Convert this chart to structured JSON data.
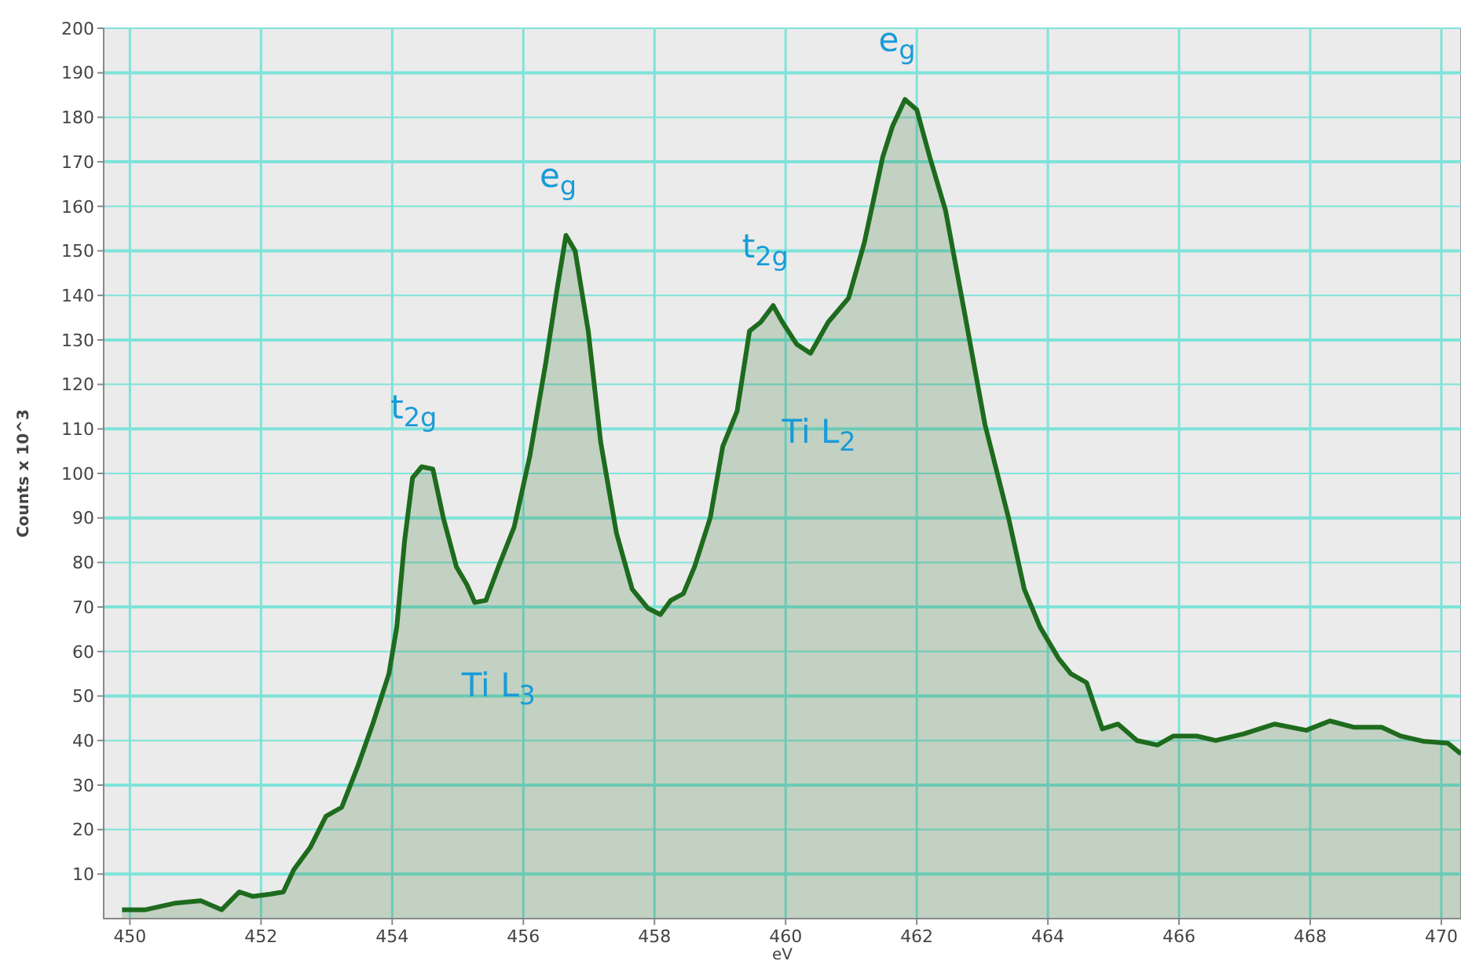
{
  "chart_data": {
    "type": "area",
    "xlabel": "eV",
    "ylabel": "Counts x 10^3",
    "xlim": [
      449.6,
      470.3
    ],
    "ylim": [
      0,
      200
    ],
    "xticks": [
      450,
      452,
      454,
      456,
      458,
      460,
      462,
      464,
      466,
      468,
      470
    ],
    "yticks": [
      10,
      20,
      30,
      40,
      50,
      60,
      70,
      80,
      90,
      100,
      110,
      120,
      130,
      140,
      150,
      160,
      170,
      180,
      190,
      200
    ],
    "grid": true,
    "series": [
      {
        "color": "#1e6b1e",
        "x": [
          449.88,
          450.24,
          450.7,
          451.08,
          451.24,
          451.4,
          451.67,
          451.87,
          452.15,
          452.34,
          452.5,
          452.75,
          452.99,
          453.23,
          453.47,
          453.71,
          453.95,
          454.07,
          454.19,
          454.31,
          454.45,
          454.62,
          454.78,
          454.98,
          455.14,
          455.26,
          455.43,
          455.62,
          455.86,
          456.1,
          456.34,
          456.51,
          456.65,
          456.79,
          456.99,
          457.18,
          457.42,
          457.66,
          457.9,
          458.09,
          458.25,
          458.44,
          458.61,
          458.85,
          459.04,
          459.26,
          459.45,
          459.62,
          459.81,
          459.95,
          460.17,
          460.38,
          460.65,
          460.96,
          461.2,
          461.48,
          461.63,
          461.82,
          462.0,
          462.2,
          462.44,
          462.73,
          463.04,
          463.4,
          463.64,
          463.88,
          464.16,
          464.35,
          464.59,
          464.83,
          465.07,
          465.36,
          465.67,
          465.91,
          466.27,
          466.56,
          466.99,
          467.46,
          467.94,
          468.3,
          468.66,
          469.09,
          469.38,
          469.74,
          470.1,
          470.3
        ],
        "values": [
          2,
          2,
          3.5,
          4,
          3,
          2,
          6,
          5,
          5.5,
          6,
          11,
          16,
          23,
          25,
          34,
          44,
          55,
          65.5,
          85,
          99,
          101.5,
          101,
          90,
          79,
          75,
          71,
          71.5,
          79,
          88,
          104,
          124.7,
          141,
          153.5,
          150,
          132,
          107,
          86.6,
          74,
          69.7,
          68.3,
          71.5,
          73,
          79,
          90,
          106,
          114,
          132,
          134,
          137.7,
          134,
          129,
          127,
          134,
          139.4,
          151.8,
          171,
          178,
          184,
          181.7,
          171,
          159,
          136,
          111,
          90,
          74,
          65.5,
          58.5,
          55,
          53,
          42.6,
          43.7,
          40,
          39,
          41,
          41,
          40,
          41.5,
          43.7,
          42.3,
          44.4,
          43,
          43,
          41,
          39.8,
          39.4,
          37
        ]
      }
    ],
    "annotations": [
      {
        "text": "t$_{2g}$",
        "x": 454.45,
        "y": 101.5
      },
      {
        "text": "e$_{g}$",
        "x": 456.65,
        "y": 153.5
      },
      {
        "text": "t$_{2g}$",
        "x": 459.81,
        "y": 137.7
      },
      {
        "text": "e$_{g}$",
        "x": 461.82,
        "y": 184
      },
      "Ti L$_{3}$",
      "Ti L$_{2}$"
    ]
  }
}
